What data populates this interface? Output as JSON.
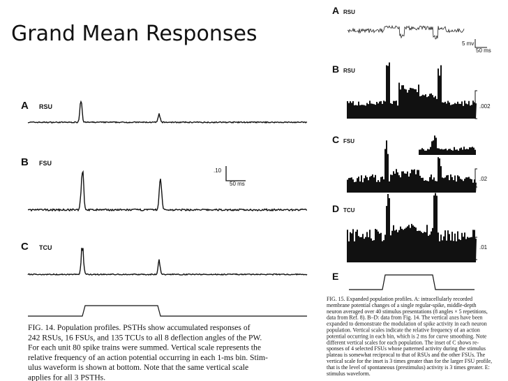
{
  "title": "Grand Mean Responses",
  "figure_14": {
    "panels": [
      {
        "letter": "A",
        "label": "RSU"
      },
      {
        "letter": "B",
        "label": "FSU"
      },
      {
        "letter": "C",
        "label": "TCU"
      }
    ],
    "scale": {
      "vertical": ".10",
      "horizontal": "50 ms"
    },
    "caption": [
      "FIG. 14.  Population profiles. PSTHs show accumulated responses of",
      "242 RSUs, 16 FSUs, and 135 TCUs to all 8 deflection angles of the PW.",
      "For each unit 80 spike trains were summed. Vertical scale represents the",
      "relative frequency of an action potential occurring in each 1-ms bin. Stim-",
      "ulus waveform is shown at bottom. Note that the same vertical scale",
      "applies for all 3 PSTHs."
    ]
  },
  "figure_15": {
    "panels": [
      {
        "letter": "A",
        "label": "RSU"
      },
      {
        "letter": "B",
        "label": "RSU"
      },
      {
        "letter": "C",
        "label": "FSU"
      },
      {
        "letter": "D",
        "label": "TCU"
      },
      {
        "letter": "E"
      }
    ],
    "scale_a": {
      "vertical": "5 mv",
      "horizontal": "50 ms"
    },
    "scales": [
      ".002",
      ".02",
      ".01"
    ],
    "caption": [
      "FIG. 15.  Expanded population profiles. A: intracellularly recorded",
      "membrane potential changes of a single regular-spike, middle-depth",
      "neuron averaged over 40 stimulus presentations (8 angles × 5 repetitions,",
      "data from Ref. 8). B–D: data from Fig. 14. The vertical axes have been",
      "expanded to demonstrate the modulation of spike activity in each neuron",
      "population. Vertical scales indicate the relative frequency of an action",
      "potential occurring in each bin, which is 2 ms for curve smoothing. Note",
      "different vertical scales for each population. The inset of C shows re-",
      "sponses of 4 selected FSUs whose patterned activity during the stimulus",
      "plateau is somewhat reciprocal to that of RSUs and the other FSUs. The",
      "vertical scale for the inset is 3 times greater than for the larger FSU profile,",
      "that is the level of spontaneous (prestimulus) activity is 3 times greater. E:",
      "stimulus waveform."
    ]
  }
}
